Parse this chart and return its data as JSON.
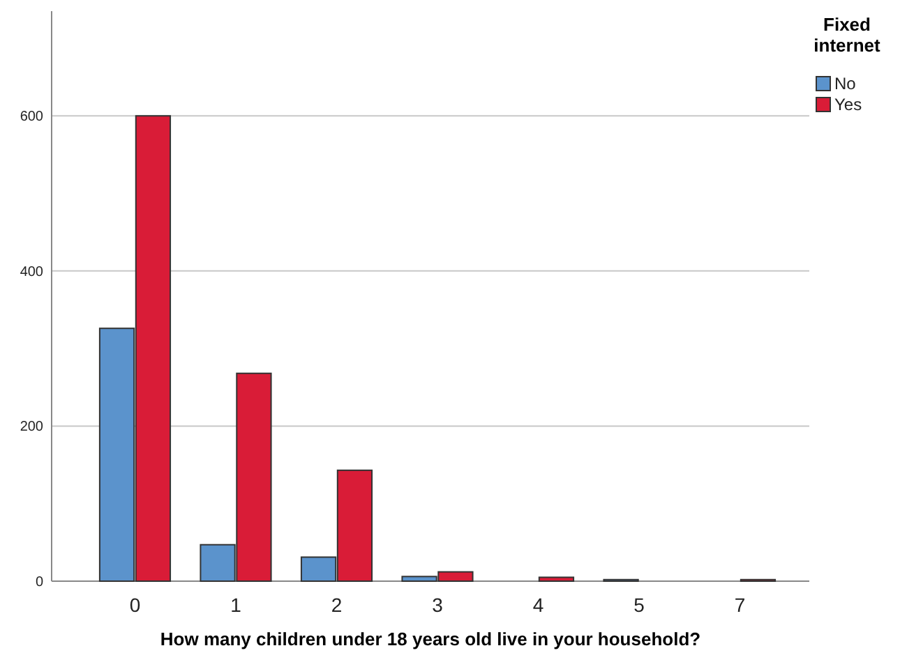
{
  "chart_data": {
    "type": "bar",
    "xlabel": "How many children under 18 years old live in your household?",
    "legend_title": "Fixed internet",
    "categories": [
      "0",
      "1",
      "2",
      "3",
      "4",
      "5",
      "7"
    ],
    "series": [
      {
        "name": "No",
        "color": "#5b93cc",
        "values": [
          326,
          47,
          31,
          6,
          0,
          2,
          0
        ]
      },
      {
        "name": "Yes",
        "color": "#d91c37",
        "values": [
          600,
          268,
          143,
          12,
          5,
          0,
          2
        ]
      }
    ],
    "ylim": [
      0,
      735
    ],
    "yticks": [
      0,
      200,
      400,
      600
    ],
    "grid": "y",
    "legend": "top right"
  }
}
